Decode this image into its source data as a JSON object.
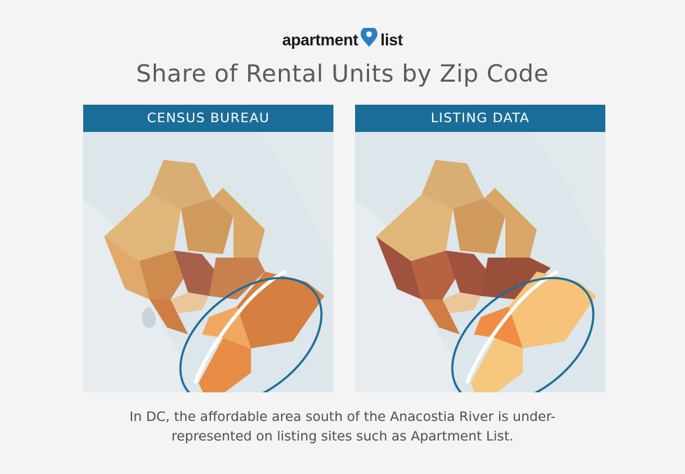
{
  "brand": {
    "logo_text_left": "apartment",
    "logo_text_right": "list"
  },
  "title": "Share of Rental Units by Zip Code",
  "panels": [
    {
      "header": "CENSUS BUREAU"
    },
    {
      "header": "LISTING DATA"
    }
  ],
  "caption": {
    "line1": "In DC, the affordable area south of the Anacostia River is under-",
    "line2": "represented on listing sites such as Apartment List."
  },
  "colors": {
    "header_bg": "#1a6d98",
    "highlight_ellipse": "#1a6d98",
    "palette_low": "#f6c77f",
    "palette_mid": "#e08a48",
    "palette_high": "#a34d38"
  },
  "maps": [
    {
      "name": "census",
      "region_fills": [
        "#d8ae74",
        "#e0b67a",
        "#cf9a5c",
        "#d9a768",
        "#e1a96a",
        "#cf8a4e",
        "#a8604a",
        "#c9804f",
        "#eac79a",
        "#d07c45",
        "#d57f40",
        "#e88c45",
        "#f0a860"
      ]
    },
    {
      "name": "listing",
      "region_fills": [
        "#d8ae74",
        "#e0b67a",
        "#cf9a5c",
        "#d9a768",
        "#e1a96a",
        "#cf8a4e",
        "#a0523f",
        "#b76243",
        "#eac79a",
        "#9a4f3a",
        "#f08c44",
        "#f7c27a",
        "#f6c77f"
      ]
    }
  ]
}
